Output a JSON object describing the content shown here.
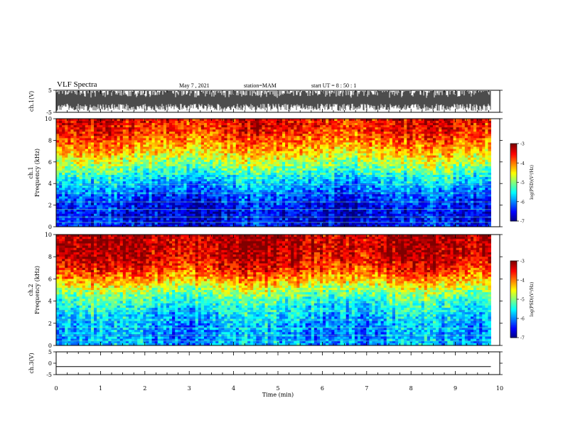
{
  "header": {
    "title": "VLF Spectra",
    "date": "May 7 , 2021",
    "station": "station=MAM",
    "start": "start UT =  8 : 50 : 1"
  },
  "chart_data": [
    {
      "type": "line",
      "panel": "ch1-waveform",
      "ylabel": "ch.1(V)",
      "ylim": [
        -5,
        5
      ],
      "yticks": [
        "5",
        "-5"
      ],
      "x_range_min": [
        0,
        9.8
      ],
      "description_values": "dense waveform, amplitude approx -3 to 4 V"
    },
    {
      "type": "heatmap",
      "panel": "ch1-spectrogram",
      "ylabel_line1": "ch.1",
      "ylabel_line2": "Frequency (kHz)",
      "ylim": [
        0,
        10
      ],
      "yticks": [
        "0",
        "2",
        "4",
        "6",
        "8",
        "10"
      ],
      "x_range_min": [
        0,
        9.8
      ],
      "colorbar": {
        "label": "log(PSD)(V²/Hz)",
        "range": [
          -7,
          -3
        ],
        "ticks": [
          "-3",
          "-4",
          "-5",
          "-6",
          "-7"
        ]
      },
      "profile_freq_khz": [
        0,
        1,
        2,
        3,
        4,
        5,
        6,
        7,
        8,
        9,
        10
      ],
      "profile_log_psd": [
        -6.5,
        -6.6,
        -6.5,
        -6.2,
        -5.8,
        -5.3,
        -4.8,
        -4.3,
        -3.9,
        -3.6,
        -3.5
      ]
    },
    {
      "type": "heatmap",
      "panel": "ch2-spectrogram",
      "ylabel_line1": "ch.2",
      "ylabel_line2": "Frequency (kHz)",
      "ylim": [
        0,
        10
      ],
      "yticks": [
        "0",
        "2",
        "4",
        "6",
        "8",
        "10"
      ],
      "x_range_min": [
        0,
        9.8
      ],
      "colorbar": {
        "label": "log(PSD)(V²/Hz)",
        "range": [
          -7,
          -3
        ],
        "ticks": [
          "-3",
          "-4",
          "-5",
          "-6",
          "-7"
        ]
      },
      "profile_freq_khz": [
        0,
        1,
        2,
        3,
        4,
        5,
        6,
        7,
        8,
        9,
        10
      ],
      "profile_log_psd": [
        -5.8,
        -5.9,
        -5.8,
        -5.6,
        -5.3,
        -4.8,
        -4.1,
        -3.6,
        -3.3,
        -3.2,
        -3.2
      ]
    },
    {
      "type": "line",
      "panel": "ch3-waveform",
      "ylabel": "ch.3(V)",
      "ylim": [
        -5,
        5
      ],
      "yticks": [
        "5",
        "0",
        "-5"
      ],
      "x_range_min": [
        0,
        9.8
      ],
      "values_constant": -1.5
    }
  ],
  "xaxis": {
    "label": "Time (min)",
    "range": [
      0,
      10
    ],
    "ticks": [
      "0",
      "1",
      "2",
      "3",
      "4",
      "5",
      "6",
      "7",
      "8",
      "9",
      "10"
    ]
  }
}
